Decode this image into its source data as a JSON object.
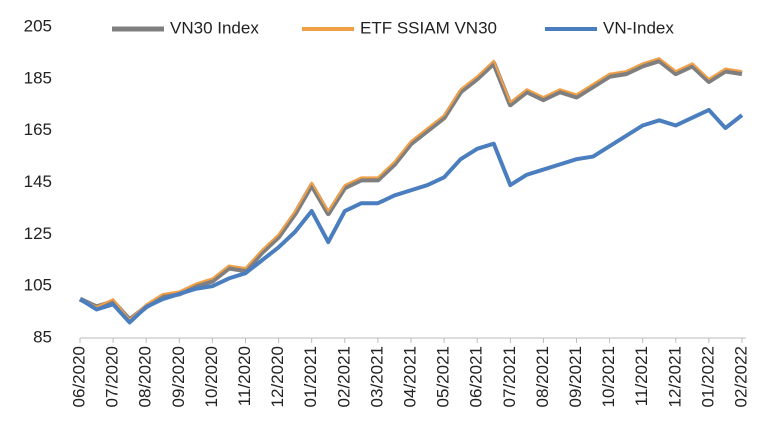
{
  "chart_data": {
    "type": "line",
    "categories": [
      "06/2020",
      null,
      "07/2020",
      null,
      "08/2020",
      null,
      "09/2020",
      null,
      "10/2020",
      null,
      "11/2020",
      null,
      "12/2020",
      null,
      "01/2021",
      null,
      "02/2021",
      null,
      "03/2021",
      null,
      "04/2021",
      null,
      "05/2021",
      null,
      "06/2021",
      null,
      "07/2021",
      null,
      "08/2021",
      null,
      "09/2021",
      null,
      "10/2021",
      null,
      "11/2021",
      null,
      "12/2021",
      null,
      "01/2022",
      null,
      "02/2022"
    ],
    "series": [
      {
        "name": "VN30 Index",
        "color": "#7f7f7f",
        "width": 5,
        "values": [
          100,
          97,
          99,
          92,
          97,
          101,
          102,
          105,
          107,
          112,
          111,
          118,
          124,
          133,
          144,
          133,
          143,
          146,
          146,
          152,
          160,
          165,
          170,
          180,
          185,
          191,
          175,
          180,
          177,
          180,
          178,
          182,
          186,
          187,
          190,
          192,
          187,
          190,
          184,
          188,
          187
        ]
      },
      {
        "name": "ETF SSIAM VN30",
        "color": "#f2a048",
        "width": 2,
        "values": [
          100,
          97,
          100,
          92,
          98,
          102,
          103,
          106,
          108,
          113,
          112,
          119,
          125,
          134,
          145,
          134,
          144,
          147,
          147,
          153,
          161,
          166,
          171,
          181,
          186,
          192,
          176,
          181,
          178,
          181,
          179,
          183,
          187,
          188,
          191,
          193,
          188,
          191,
          185,
          189,
          188
        ]
      },
      {
        "name": "VN-Index",
        "color": "#4a7ebf",
        "width": 4,
        "values": [
          100,
          96,
          98,
          91,
          97,
          100,
          102,
          104,
          105,
          108,
          110,
          115,
          120,
          126,
          134,
          122,
          134,
          137,
          137,
          140,
          142,
          144,
          147,
          154,
          158,
          160,
          144,
          148,
          150,
          152,
          154,
          155,
          159,
          163,
          167,
          169,
          167,
          170,
          173,
          166,
          171
        ]
      }
    ],
    "ylim": [
      85,
      205
    ],
    "yticks": [
      85,
      105,
      125,
      145,
      165,
      185,
      205
    ],
    "legend": "top"
  }
}
